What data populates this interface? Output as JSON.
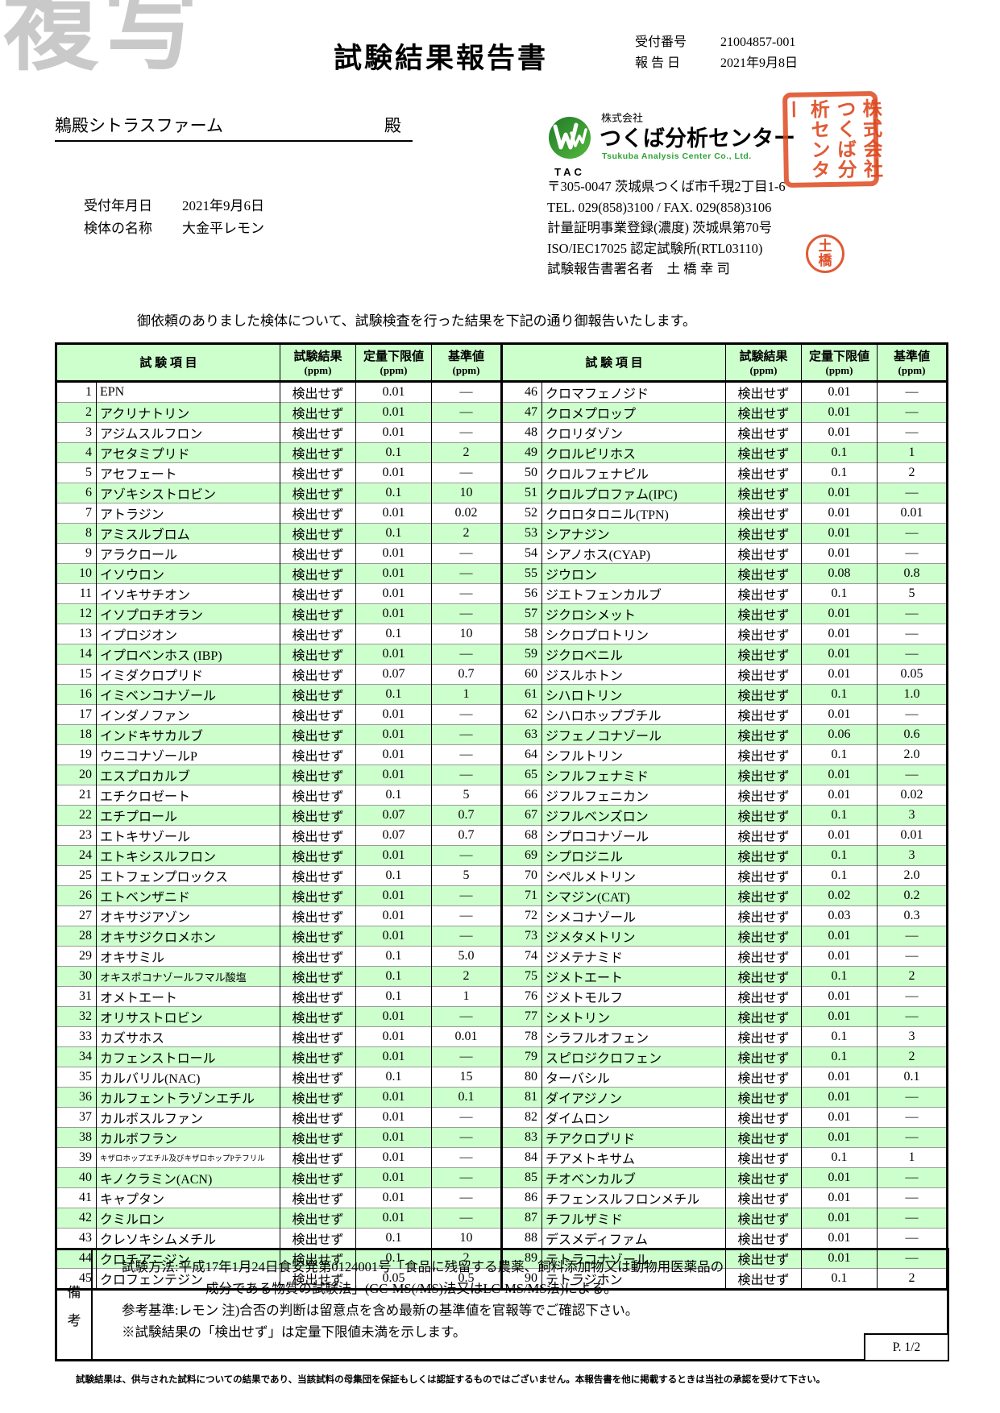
{
  "watermark": "複写",
  "title": "試験結果報告書",
  "meta": {
    "receipt_no_label": "受付番号",
    "receipt_no": "21004857-001",
    "report_date_label": "報 告 日",
    "report_date": "2021年9月8日"
  },
  "client": {
    "name": "鵜殿シトラスファーム",
    "honorific": "殿"
  },
  "sample": {
    "received_date_label": "受付年月日",
    "received_date": "2021年9月6日",
    "sample_name_label": "検体の名称",
    "sample_name": "大金平レモン"
  },
  "company": {
    "logo_acronym": "TAC",
    "prefix": "株式会社",
    "name": "つくば分析センター",
    "name_en": "Tsukuba Analysis Center Co., Ltd.",
    "address": "〒305-0047 茨城県つくば市千現2丁目1-6",
    "tel_fax": "TEL. 029(858)3100 / FAX. 029(858)3106",
    "registration": "計量証明事業登録(濃度)  茨城県第70号",
    "iso": "ISO/IEC17025 認定試験所(RTL03110)",
    "signer_label": "試験報告書署名者",
    "signer": "土 橋  幸 司",
    "square_seal_text": "株式会社つくば分析センター",
    "round_seal_chars": [
      "土",
      "橋"
    ],
    "seal_color": "#dd4920",
    "logo_green": "#2fa336"
  },
  "statement": "御依頼のありました検体について、試験検査を行った結果を下記の通り御報告いたします。",
  "table": {
    "headers": {
      "item": "試  験  項  目",
      "result": "試験結果",
      "limit": "定量下限値",
      "standard": "基準値",
      "unit": "(ppm)"
    },
    "stripe_color": "#ccffcc",
    "rows": [
      {
        "no": 1,
        "name": "EPN",
        "result": "検出せず",
        "limit": "0.01",
        "std": "—"
      },
      {
        "no": 2,
        "name": "アクリナトリン",
        "result": "検出せず",
        "limit": "0.01",
        "std": "—"
      },
      {
        "no": 3,
        "name": "アジムスルフロン",
        "result": "検出せず",
        "limit": "0.01",
        "std": "—"
      },
      {
        "no": 4,
        "name": "アセタミプリド",
        "result": "検出せず",
        "limit": "0.1",
        "std": "2"
      },
      {
        "no": 5,
        "name": "アセフェート",
        "result": "検出せず",
        "limit": "0.01",
        "std": "—"
      },
      {
        "no": 6,
        "name": "アゾキシストロビン",
        "result": "検出せず",
        "limit": "0.1",
        "std": "10"
      },
      {
        "no": 7,
        "name": "アトラジン",
        "result": "検出せず",
        "limit": "0.01",
        "std": "0.02"
      },
      {
        "no": 8,
        "name": "アミスルブロム",
        "result": "検出せず",
        "limit": "0.1",
        "std": "2"
      },
      {
        "no": 9,
        "name": "アラクロール",
        "result": "検出せず",
        "limit": "0.01",
        "std": "—"
      },
      {
        "no": 10,
        "name": "イソウロン",
        "result": "検出せず",
        "limit": "0.01",
        "std": "—"
      },
      {
        "no": 11,
        "name": "イソキサチオン",
        "result": "検出せず",
        "limit": "0.01",
        "std": "—"
      },
      {
        "no": 12,
        "name": "イソプロチオラン",
        "result": "検出せず",
        "limit": "0.01",
        "std": "—"
      },
      {
        "no": 13,
        "name": "イプロジオン",
        "result": "検出せず",
        "limit": "0.1",
        "std": "10"
      },
      {
        "no": 14,
        "name": "イプロベンホス (IBP)",
        "result": "検出せず",
        "limit": "0.01",
        "std": "—"
      },
      {
        "no": 15,
        "name": "イミダクロプリド",
        "result": "検出せず",
        "limit": "0.07",
        "std": "0.7"
      },
      {
        "no": 16,
        "name": "イミベンコナゾール",
        "result": "検出せず",
        "limit": "0.1",
        "std": "1"
      },
      {
        "no": 17,
        "name": "インダノファン",
        "result": "検出せず",
        "limit": "0.01",
        "std": "—"
      },
      {
        "no": 18,
        "name": "インドキサカルブ",
        "result": "検出せず",
        "limit": "0.01",
        "std": "—"
      },
      {
        "no": 19,
        "name": "ウニコナゾールP",
        "result": "検出せず",
        "limit": "0.01",
        "std": "—"
      },
      {
        "no": 20,
        "name": "エスプロカルブ",
        "result": "検出せず",
        "limit": "0.01",
        "std": "—"
      },
      {
        "no": 21,
        "name": "エチクロゼート",
        "result": "検出せず",
        "limit": "0.1",
        "std": "5"
      },
      {
        "no": 22,
        "name": "エチプロール",
        "result": "検出せず",
        "limit": "0.07",
        "std": "0.7"
      },
      {
        "no": 23,
        "name": "エトキサゾール",
        "result": "検出せず",
        "limit": "0.07",
        "std": "0.7"
      },
      {
        "no": 24,
        "name": "エトキシスルフロン",
        "result": "検出せず",
        "limit": "0.01",
        "std": "—"
      },
      {
        "no": 25,
        "name": "エトフェンプロックス",
        "result": "検出せず",
        "limit": "0.1",
        "std": "5"
      },
      {
        "no": 26,
        "name": "エトベンザニド",
        "result": "検出せず",
        "limit": "0.01",
        "std": "—"
      },
      {
        "no": 27,
        "name": "オキサジアゾン",
        "result": "検出せず",
        "limit": "0.01",
        "std": "—"
      },
      {
        "no": 28,
        "name": "オキサジクロメホン",
        "result": "検出せず",
        "limit": "0.01",
        "std": "—"
      },
      {
        "no": 29,
        "name": "オキサミル",
        "result": "検出せず",
        "limit": "0.1",
        "std": "5.0"
      },
      {
        "no": 30,
        "name": "オキスポコナゾールフマル酸塩",
        "result": "検出せず",
        "limit": "0.1",
        "std": "2"
      },
      {
        "no": 31,
        "name": "オメトエート",
        "result": "検出せず",
        "limit": "0.1",
        "std": "1"
      },
      {
        "no": 32,
        "name": "オリサストロビン",
        "result": "検出せず",
        "limit": "0.01",
        "std": "—"
      },
      {
        "no": 33,
        "name": "カズサホス",
        "result": "検出せず",
        "limit": "0.01",
        "std": "0.01"
      },
      {
        "no": 34,
        "name": "カフェンストロール",
        "result": "検出せず",
        "limit": "0.01",
        "std": "—"
      },
      {
        "no": 35,
        "name": "カルバリル(NAC)",
        "result": "検出せず",
        "limit": "0.1",
        "std": "15"
      },
      {
        "no": 36,
        "name": "カルフェントラゾンエチル",
        "result": "検出せず",
        "limit": "0.01",
        "std": "0.1"
      },
      {
        "no": 37,
        "name": "カルボスルファン",
        "result": "検出せず",
        "limit": "0.01",
        "std": "—"
      },
      {
        "no": 38,
        "name": "カルボフラン",
        "result": "検出せず",
        "limit": "0.01",
        "std": "—"
      },
      {
        "no": 39,
        "name": "キザロホップエチル及びキザロホップPテフリル",
        "result": "検出せず",
        "limit": "0.01",
        "std": "—"
      },
      {
        "no": 40,
        "name": "キノクラミン(ACN)",
        "result": "検出せず",
        "limit": "0.01",
        "std": "—"
      },
      {
        "no": 41,
        "name": "キャプタン",
        "result": "検出せず",
        "limit": "0.01",
        "std": "—"
      },
      {
        "no": 42,
        "name": "クミルロン",
        "result": "検出せず",
        "limit": "0.01",
        "std": "—"
      },
      {
        "no": 43,
        "name": "クレソキシムメチル",
        "result": "検出せず",
        "limit": "0.1",
        "std": "10"
      },
      {
        "no": 44,
        "name": "クロチアニジン",
        "result": "検出せず",
        "limit": "0.1",
        "std": "2"
      },
      {
        "no": 45,
        "name": "クロフェンテジン",
        "result": "検出せず",
        "limit": "0.05",
        "std": "0.5"
      },
      {
        "no": 46,
        "name": "クロマフェノジド",
        "result": "検出せず",
        "limit": "0.01",
        "std": "—"
      },
      {
        "no": 47,
        "name": "クロメプロップ",
        "result": "検出せず",
        "limit": "0.01",
        "std": "—"
      },
      {
        "no": 48,
        "name": "クロリダゾン",
        "result": "検出せず",
        "limit": "0.01",
        "std": "—"
      },
      {
        "no": 49,
        "name": "クロルピリホス",
        "result": "検出せず",
        "limit": "0.1",
        "std": "1"
      },
      {
        "no": 50,
        "name": "クロルフェナピル",
        "result": "検出せず",
        "limit": "0.1",
        "std": "2"
      },
      {
        "no": 51,
        "name": "クロルプロファム(IPC)",
        "result": "検出せず",
        "limit": "0.01",
        "std": "—"
      },
      {
        "no": 52,
        "name": "クロロタロニル(TPN)",
        "result": "検出せず",
        "limit": "0.01",
        "std": "0.01"
      },
      {
        "no": 53,
        "name": "シアナジン",
        "result": "検出せず",
        "limit": "0.01",
        "std": "—"
      },
      {
        "no": 54,
        "name": "シアノホス(CYAP)",
        "result": "検出せず",
        "limit": "0.01",
        "std": "—"
      },
      {
        "no": 55,
        "name": "ジウロン",
        "result": "検出せず",
        "limit": "0.08",
        "std": "0.8"
      },
      {
        "no": 56,
        "name": "ジエトフェンカルブ",
        "result": "検出せず",
        "limit": "0.1",
        "std": "5"
      },
      {
        "no": 57,
        "name": "ジクロシメット",
        "result": "検出せず",
        "limit": "0.01",
        "std": "—"
      },
      {
        "no": 58,
        "name": "シクロプロトリン",
        "result": "検出せず",
        "limit": "0.01",
        "std": "—"
      },
      {
        "no": 59,
        "name": "ジクロベニル",
        "result": "検出せず",
        "limit": "0.01",
        "std": "—"
      },
      {
        "no": 60,
        "name": "ジスルホトン",
        "result": "検出せず",
        "limit": "0.01",
        "std": "0.05"
      },
      {
        "no": 61,
        "name": "シハロトリン",
        "result": "検出せず",
        "limit": "0.1",
        "std": "1.0"
      },
      {
        "no": 62,
        "name": "シハロホップブチル",
        "result": "検出せず",
        "limit": "0.01",
        "std": "—"
      },
      {
        "no": 63,
        "name": "ジフェノコナゾール",
        "result": "検出せず",
        "limit": "0.06",
        "std": "0.6"
      },
      {
        "no": 64,
        "name": "シフルトリン",
        "result": "検出せず",
        "limit": "0.1",
        "std": "2.0"
      },
      {
        "no": 65,
        "name": "シフルフェナミド",
        "result": "検出せず",
        "limit": "0.01",
        "std": "—"
      },
      {
        "no": 66,
        "name": "ジフルフェニカン",
        "result": "検出せず",
        "limit": "0.01",
        "std": "0.02"
      },
      {
        "no": 67,
        "name": "ジフルベンズロン",
        "result": "検出せず",
        "limit": "0.1",
        "std": "3"
      },
      {
        "no": 68,
        "name": "シプロコナゾール",
        "result": "検出せず",
        "limit": "0.01",
        "std": "0.01"
      },
      {
        "no": 69,
        "name": "シプロジニル",
        "result": "検出せず",
        "limit": "0.1",
        "std": "3"
      },
      {
        "no": 70,
        "name": "シペルメトリン",
        "result": "検出せず",
        "limit": "0.1",
        "std": "2.0"
      },
      {
        "no": 71,
        "name": "シマジン(CAT)",
        "result": "検出せず",
        "limit": "0.02",
        "std": "0.2"
      },
      {
        "no": 72,
        "name": "シメコナゾール",
        "result": "検出せず",
        "limit": "0.03",
        "std": "0.3"
      },
      {
        "no": 73,
        "name": "ジメタメトリン",
        "result": "検出せず",
        "limit": "0.01",
        "std": "—"
      },
      {
        "no": 74,
        "name": "ジメテナミド",
        "result": "検出せず",
        "limit": "0.01",
        "std": "—"
      },
      {
        "no": 75,
        "name": "ジメトエート",
        "result": "検出せず",
        "limit": "0.1",
        "std": "2"
      },
      {
        "no": 76,
        "name": "ジメトモルフ",
        "result": "検出せず",
        "limit": "0.01",
        "std": "—"
      },
      {
        "no": 77,
        "name": "シメトリン",
        "result": "検出せず",
        "limit": "0.01",
        "std": "—"
      },
      {
        "no": 78,
        "name": "シラフルオフェン",
        "result": "検出せず",
        "limit": "0.1",
        "std": "3"
      },
      {
        "no": 79,
        "name": "スピロジクロフェン",
        "result": "検出せず",
        "limit": "0.1",
        "std": "2"
      },
      {
        "no": 80,
        "name": "ターバシル",
        "result": "検出せず",
        "limit": "0.01",
        "std": "0.1"
      },
      {
        "no": 81,
        "name": "ダイアジノン",
        "result": "検出せず",
        "limit": "0.01",
        "std": "—"
      },
      {
        "no": 82,
        "name": "ダイムロン",
        "result": "検出せず",
        "limit": "0.01",
        "std": "—"
      },
      {
        "no": 83,
        "name": "チアクロプリド",
        "result": "検出せず",
        "limit": "0.01",
        "std": "—"
      },
      {
        "no": 84,
        "name": "チアメトキサム",
        "result": "検出せず",
        "limit": "0.1",
        "std": "1"
      },
      {
        "no": 85,
        "name": "チオベンカルブ",
        "result": "検出せず",
        "limit": "0.01",
        "std": "—"
      },
      {
        "no": 86,
        "name": "チフェンスルフロンメチル",
        "result": "検出せず",
        "limit": "0.01",
        "std": "—"
      },
      {
        "no": 87,
        "name": "チフルザミド",
        "result": "検出せず",
        "limit": "0.01",
        "std": "—"
      },
      {
        "no": 88,
        "name": "デスメディファム",
        "result": "検出せず",
        "limit": "0.01",
        "std": "—"
      },
      {
        "no": 89,
        "name": "テトラコナゾール",
        "result": "検出せず",
        "limit": "0.01",
        "std": "—"
      },
      {
        "no": 90,
        "name": "テトラジホン",
        "result": "検出せず",
        "limit": "0.1",
        "std": "2"
      }
    ]
  },
  "notes": {
    "label_chars": [
      "備",
      "考"
    ],
    "line1": "試験方法:平成17年1月24日食安発第0124001号「食品に残留する農薬、飼料添加物又は動物用医薬品の",
    "line2": "成分である物質の試験法」(GC-MS(/MS)法又はLC-MS/MS法)による。",
    "line3": "参考基準:レモン   注)合否の判断は留意点を含め最新の基準値を官報等でご確認下さい。",
    "line4": "※試験結果の「検出せず」は定量下限値未満を示します。",
    "page": "P. 1/2"
  },
  "disclaimer": "試験結果は、供与された試料についての結果であり、当該試料の母集団を保証もしくは認証するものではございません。本報告書を他に掲載するときは当社の承認を受けて下さい。"
}
